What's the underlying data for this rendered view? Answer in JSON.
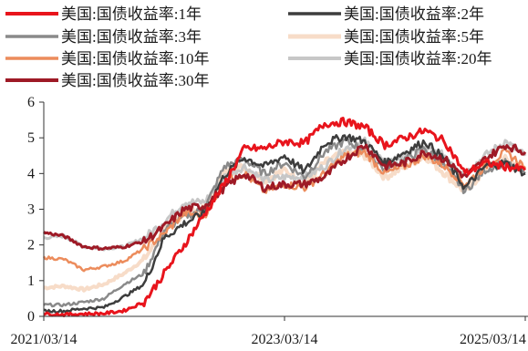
{
  "chart_data": {
    "type": "line",
    "title": "",
    "xlabel": "",
    "ylabel": "",
    "ylim": [
      0,
      6
    ],
    "yticks": [
      "0",
      "1",
      "2",
      "3",
      "4",
      "5",
      "6"
    ],
    "xticks": [
      "2021/03/14",
      "2023/03/14",
      "2025/03/14"
    ],
    "x": [
      "2021/03/14",
      "2021/05/14",
      "2021/07/14",
      "2021/09/14",
      "2021/11/14",
      "2022/01/14",
      "2022/03/14",
      "2022/05/14",
      "2022/07/14",
      "2022/09/14",
      "2022/11/14",
      "2023/01/14",
      "2023/03/14",
      "2023/05/14",
      "2023/07/14",
      "2023/09/14",
      "2023/11/14",
      "2024/01/14",
      "2024/03/14",
      "2024/05/14",
      "2024/07/14",
      "2024/09/14",
      "2024/11/14",
      "2025/01/14",
      "2025/03/14"
    ],
    "legend_position": "top",
    "series": [
      {
        "name": "美国:国债收益率:1年",
        "color": "#e8141c",
        "width": 3,
        "values": [
          0.07,
          0.05,
          0.07,
          0.08,
          0.16,
          0.4,
          1.2,
          2.0,
          2.85,
          3.7,
          4.7,
          4.7,
          4.9,
          4.85,
          5.4,
          5.45,
          5.3,
          4.8,
          5.0,
          5.2,
          4.9,
          4.0,
          4.3,
          4.2,
          4.1
        ]
      },
      {
        "name": "美国:国债收益率:2年",
        "color": "#3d3d3d",
        "width": 2.5,
        "values": [
          0.15,
          0.15,
          0.22,
          0.25,
          0.55,
          0.9,
          2.2,
          2.6,
          2.9,
          3.95,
          4.45,
          4.2,
          4.5,
          4.05,
          4.85,
          5.05,
          4.9,
          4.3,
          4.6,
          4.9,
          4.4,
          3.6,
          4.2,
          4.3,
          4.0
        ]
      },
      {
        "name": "美国:国债收益率:3年",
        "color": "#8a8a8a",
        "width": 2.5,
        "values": [
          0.32,
          0.32,
          0.4,
          0.5,
          0.9,
          1.2,
          2.4,
          2.8,
          3.0,
          4.2,
          4.4,
          4.0,
          4.3,
          3.9,
          4.6,
          4.9,
          4.7,
          4.1,
          4.4,
          4.7,
          4.2,
          3.5,
          4.1,
          4.3,
          4.0
        ]
      },
      {
        "name": "美国:国债收益率:5年",
        "color": "#f7dcc8",
        "width": 4,
        "values": [
          0.8,
          0.85,
          0.75,
          0.9,
          1.2,
          1.6,
          2.4,
          2.9,
          3.0,
          4.0,
          4.2,
          3.8,
          4.1,
          3.7,
          4.3,
          4.6,
          4.5,
          3.9,
          4.2,
          4.5,
          4.0,
          3.5,
          4.1,
          4.4,
          4.1
        ]
      },
      {
        "name": "美国:国债收益率:10年",
        "color": "#ec8c5c",
        "width": 2.5,
        "values": [
          1.65,
          1.6,
          1.3,
          1.4,
          1.55,
          1.9,
          2.3,
          2.9,
          2.8,
          3.8,
          4.0,
          3.5,
          3.7,
          3.6,
          4.0,
          4.5,
          4.6,
          4.0,
          4.2,
          4.5,
          4.2,
          3.7,
          4.2,
          4.6,
          4.2
        ]
      },
      {
        "name": "美国:国债收益率:20年",
        "color": "#c7c7c7",
        "width": 3,
        "values": [
          2.2,
          2.25,
          1.95,
          1.9,
          1.95,
          2.2,
          2.65,
          3.2,
          3.2,
          3.9,
          4.2,
          3.8,
          3.9,
          3.9,
          4.2,
          4.7,
          4.9,
          4.3,
          4.5,
          4.7,
          4.5,
          4.0,
          4.5,
          4.9,
          4.5
        ]
      },
      {
        "name": "美国:国债收益率:30年",
        "color": "#9e1a26",
        "width": 3,
        "values": [
          2.35,
          2.25,
          1.95,
          1.9,
          1.95,
          2.1,
          2.5,
          3.0,
          3.1,
          3.6,
          4.0,
          3.6,
          3.7,
          3.7,
          3.9,
          4.4,
          4.8,
          4.2,
          4.3,
          4.6,
          4.4,
          3.9,
          4.4,
          4.8,
          4.6
        ]
      }
    ]
  }
}
